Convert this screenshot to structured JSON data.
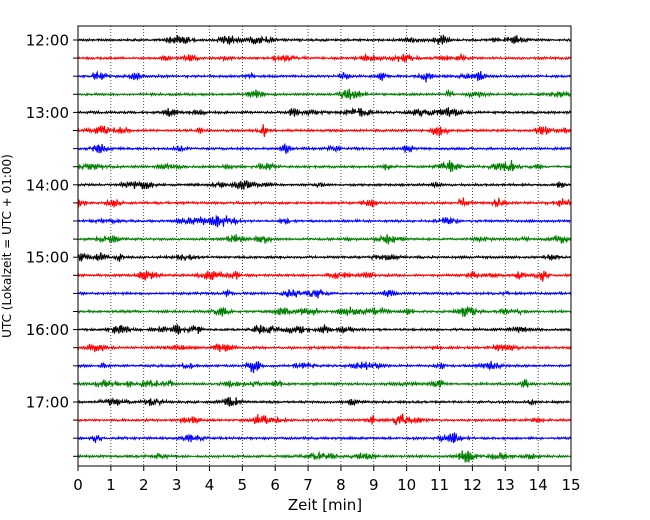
{
  "chart_data": {
    "type": "line",
    "plot_kind": "helicorder",
    "xlabel": "Zeit  [min]",
    "ylabel": "UTC (Lokalzeit = UTC + 01:00)",
    "xlim": [
      0,
      15
    ],
    "x_ticks": [
      "0",
      "1",
      "2",
      "3",
      "4",
      "5",
      "6",
      "7",
      "8",
      "9",
      "10",
      "11",
      "12",
      "13",
      "14",
      "15"
    ],
    "y_tick_labels": [
      "12:00",
      "13:00",
      "14:00",
      "15:00",
      "16:00",
      "17:00"
    ],
    "traces_per_hour": 4,
    "trace_count": 24,
    "trace_colors": [
      "#000000",
      "#ff0000",
      "#0000ff",
      "#008000"
    ],
    "grid": "vertical dotted lines at each minute"
  }
}
